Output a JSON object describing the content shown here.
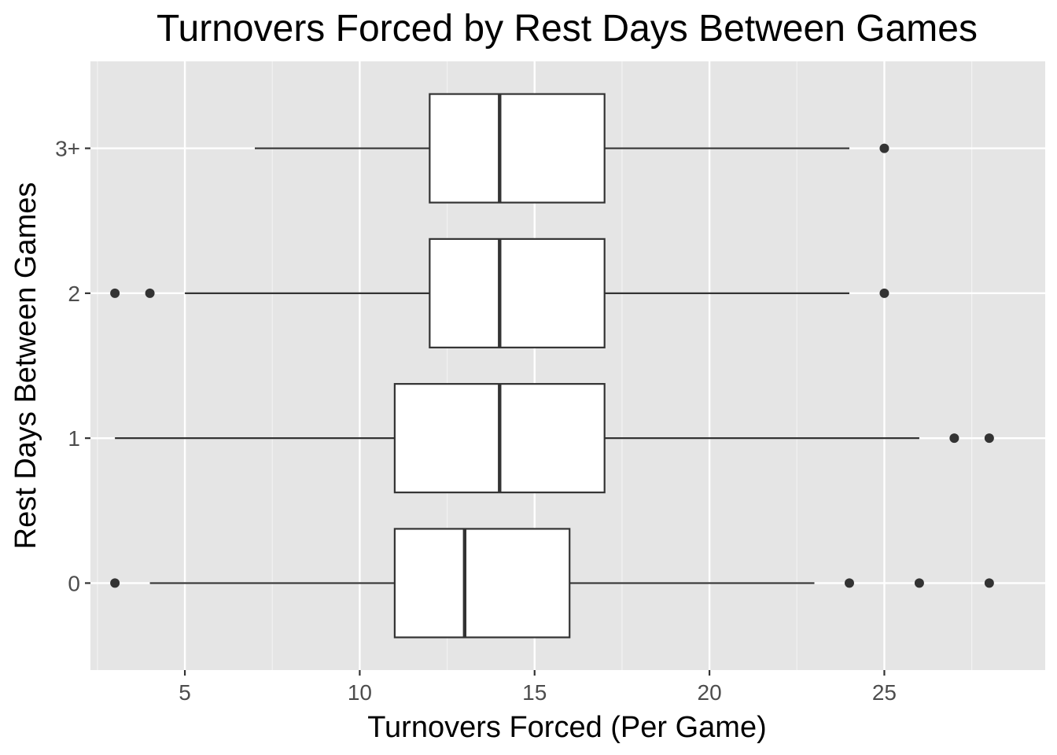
{
  "chart_data": {
    "type": "boxplot",
    "orientation": "horizontal",
    "title": "Turnovers Forced by Rest Days Between Games",
    "xlabel": "Turnovers Forced (Per Game)",
    "ylabel": "Rest Days Between Games",
    "xlim": [
      2.3,
      29.6
    ],
    "x_ticks": [
      5,
      10,
      15,
      20,
      25
    ],
    "x_tick_labels": [
      "5",
      "10",
      "15",
      "20",
      "25"
    ],
    "categories": [
      "0",
      "1",
      "2",
      "3+"
    ],
    "grid": true,
    "legend": "none",
    "boxes": [
      {
        "category": "0",
        "whisker_low": 4,
        "q1": 11,
        "median": 13,
        "q3": 16,
        "whisker_high": 23,
        "outliers": [
          3,
          24,
          26,
          28
        ]
      },
      {
        "category": "1",
        "whisker_low": 3,
        "q1": 11,
        "median": 14,
        "q3": 17,
        "whisker_high": 26,
        "outliers": [
          27,
          28
        ]
      },
      {
        "category": "2",
        "whisker_low": 5,
        "q1": 12,
        "median": 14,
        "q3": 17,
        "whisker_high": 24,
        "outliers": [
          3,
          4,
          25
        ]
      },
      {
        "category": "3+",
        "whisker_low": 7,
        "q1": 12,
        "median": 14,
        "q3": 17,
        "whisker_high": 24,
        "outliers": [
          25
        ]
      }
    ]
  },
  "colors": {
    "panel_background": "#e5e5e5",
    "grid_major": "#ffffff",
    "grid_minor": "#f2f2f2",
    "box_fill": "#ffffff",
    "box_stroke": "#333333",
    "outlier": "#333333",
    "tick_text": "#4d4d4d",
    "title_text": "#000000"
  }
}
